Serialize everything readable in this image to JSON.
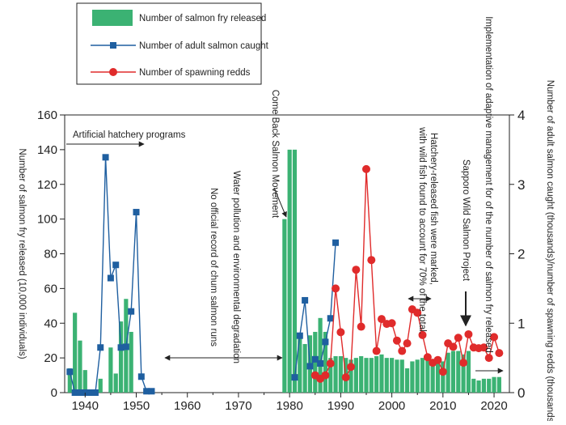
{
  "chart_data": {
    "type": "bar",
    "x_range": [
      1936,
      2023
    ],
    "x_ticks": [
      1940,
      1950,
      1960,
      1970,
      1980,
      1990,
      2000,
      2010,
      2020
    ],
    "y_left": {
      "label": "Number of salmon fry released (10,000 individuals)",
      "ylim": [
        0,
        160
      ],
      "ticks": [
        0,
        20,
        40,
        60,
        80,
        100,
        120,
        140,
        160
      ]
    },
    "y_right": {
      "label": "Number of adult salmon caught (thousands)/number of spawning redds (thousands)",
      "ylim": [
        0,
        4
      ],
      "ticks": [
        0,
        1,
        2,
        3,
        4
      ]
    },
    "legend": {
      "placement": "top-left",
      "entries": [
        "Number of salmon fry released",
        "Number of adult salmon caught",
        "Number of spawning redds"
      ]
    },
    "colors": {
      "fry_bars": "#3bb273",
      "adult_caught": "#1f5fa0",
      "spawning_redds": "#e02b2b"
    },
    "series": [
      {
        "name": "Number of salmon fry released",
        "kind": "bar",
        "axis": "left",
        "x": [
          1937,
          1938,
          1939,
          1940,
          1941,
          1942,
          1943,
          1944,
          1945,
          1946,
          1947,
          1948,
          1949,
          1950,
          1951,
          1952,
          1953,
          1979,
          1980,
          1981,
          1982,
          1983,
          1984,
          1985,
          1986,
          1987,
          1988,
          1989,
          1990,
          1991,
          1992,
          1993,
          1994,
          1995,
          1996,
          1997,
          1998,
          1999,
          2000,
          2001,
          2002,
          2003,
          2004,
          2005,
          2006,
          2007,
          2008,
          2009,
          2010,
          2011,
          2012,
          2013,
          2014,
          2015,
          2016,
          2017,
          2018,
          2019,
          2020,
          2021
        ],
        "values": [
          14,
          46,
          30,
          13,
          0,
          0,
          8,
          0,
          26,
          11,
          41,
          54,
          35,
          0,
          0,
          0,
          0,
          100,
          140,
          140,
          32,
          28,
          33,
          35,
          43,
          35,
          20,
          21,
          21,
          20,
          19,
          20,
          21,
          20,
          20,
          21,
          22,
          20,
          20,
          19,
          19,
          14,
          18,
          19,
          20,
          19,
          16,
          18,
          18,
          23,
          24,
          24,
          22,
          24,
          8,
          7,
          8,
          8,
          9,
          9
        ]
      },
      {
        "name": "Number of adult salmon caught",
        "kind": "line",
        "axis": "right",
        "segments": [
          {
            "x": [
              1937,
              1938,
              1939,
              1940,
              1941,
              1942,
              1943,
              1944,
              1945,
              1946,
              1947,
              1948,
              1949,
              1950,
              1951,
              1952,
              1953
            ],
            "values": [
              0.3,
              0.0,
              0.0,
              0.0,
              0.0,
              0.0,
              0.65,
              3.39,
              1.65,
              1.84,
              0.65,
              0.66,
              1.17,
              2.6,
              0.23,
              0.02,
              0.02
            ]
          },
          {
            "x": [
              1981,
              1982,
              1983,
              1984,
              1985,
              1986,
              1987,
              1988,
              1989
            ],
            "values": [
              0.22,
              0.82,
              1.33,
              0.38,
              0.48,
              0.42,
              0.73,
              1.07,
              2.16
            ]
          }
        ]
      },
      {
        "name": "Number of spawning redds",
        "kind": "line",
        "axis": "right",
        "x": [
          1985,
          1986,
          1987,
          1988,
          1989,
          1990,
          1991,
          1992,
          1993,
          1994,
          1995,
          1996,
          1997,
          1998,
          1999,
          2000,
          2001,
          2002,
          2003,
          2004,
          2005,
          2006,
          2007,
          2008,
          2009,
          2010,
          2011,
          2012,
          2013,
          2014,
          2015,
          2016,
          2017,
          2018,
          2019,
          2020,
          2021
        ],
        "values": [
          0.25,
          0.2,
          0.25,
          0.42,
          1.5,
          0.87,
          0.22,
          0.37,
          1.77,
          0.95,
          3.22,
          1.91,
          0.6,
          1.06,
          0.99,
          1.0,
          0.75,
          0.6,
          0.71,
          1.2,
          1.15,
          0.83,
          0.51,
          0.43,
          0.47,
          0.3,
          0.71,
          0.66,
          0.79,
          0.43,
          0.84,
          0.65,
          0.64,
          0.65,
          0.5,
          0.8,
          0.57
        ]
      }
    ],
    "annotations": [
      {
        "text": "Artificial hatchery programs",
        "arrow": "right"
      },
      {
        "text": "Water pollution and environmental degradation",
        "arrow": "both"
      },
      {
        "text": "No official record of chum salmon runs",
        "arrow": "none"
      },
      {
        "text": "Come Back Salmon Movement",
        "arrow": "down-right"
      },
      {
        "text": "Hatchery-released fish were marked,",
        "arrow": "none"
      },
      {
        "text": "with wild fish found to account for 70% of the total.",
        "arrow": "both"
      },
      {
        "text": "Sapporo Wild Salmon Project",
        "arrow": "down"
      },
      {
        "text": "Implementation of adaptive management for of the number of salmon fry released",
        "arrow": "right"
      }
    ]
  }
}
